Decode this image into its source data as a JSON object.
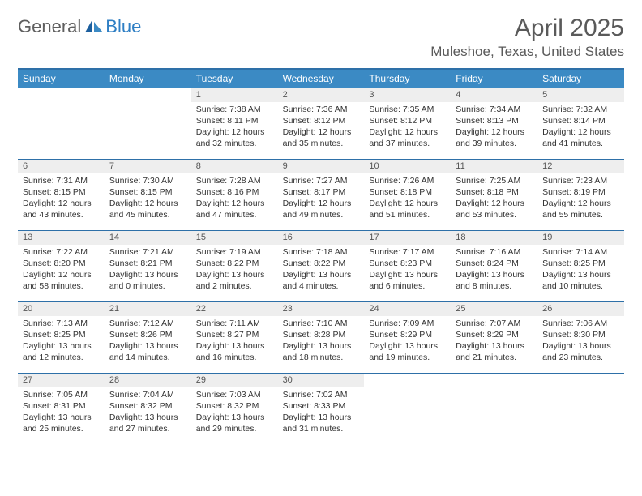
{
  "logo": {
    "text1": "General",
    "text2": "Blue"
  },
  "title": "April 2025",
  "location": "Muleshoe, Texas, United States",
  "colors": {
    "header_bg": "#3b8ac4",
    "header_text": "#ffffff",
    "border": "#2e70a8",
    "daynum_bg": "#eeeeee",
    "text": "#333333",
    "logo_gray": "#5f5f5f",
    "logo_blue": "#2f7fc4",
    "title_color": "#5a5a5a"
  },
  "weekdays": [
    "Sunday",
    "Monday",
    "Tuesday",
    "Wednesday",
    "Thursday",
    "Friday",
    "Saturday"
  ],
  "leading_blanks": 2,
  "days": [
    {
      "n": "1",
      "sunrise": "7:38 AM",
      "sunset": "8:11 PM",
      "day_h": 12,
      "day_m": 32
    },
    {
      "n": "2",
      "sunrise": "7:36 AM",
      "sunset": "8:12 PM",
      "day_h": 12,
      "day_m": 35
    },
    {
      "n": "3",
      "sunrise": "7:35 AM",
      "sunset": "8:12 PM",
      "day_h": 12,
      "day_m": 37
    },
    {
      "n": "4",
      "sunrise": "7:34 AM",
      "sunset": "8:13 PM",
      "day_h": 12,
      "day_m": 39
    },
    {
      "n": "5",
      "sunrise": "7:32 AM",
      "sunset": "8:14 PM",
      "day_h": 12,
      "day_m": 41
    },
    {
      "n": "6",
      "sunrise": "7:31 AM",
      "sunset": "8:15 PM",
      "day_h": 12,
      "day_m": 43
    },
    {
      "n": "7",
      "sunrise": "7:30 AM",
      "sunset": "8:15 PM",
      "day_h": 12,
      "day_m": 45
    },
    {
      "n": "8",
      "sunrise": "7:28 AM",
      "sunset": "8:16 PM",
      "day_h": 12,
      "day_m": 47
    },
    {
      "n": "9",
      "sunrise": "7:27 AM",
      "sunset": "8:17 PM",
      "day_h": 12,
      "day_m": 49
    },
    {
      "n": "10",
      "sunrise": "7:26 AM",
      "sunset": "8:18 PM",
      "day_h": 12,
      "day_m": 51
    },
    {
      "n": "11",
      "sunrise": "7:25 AM",
      "sunset": "8:18 PM",
      "day_h": 12,
      "day_m": 53
    },
    {
      "n": "12",
      "sunrise": "7:23 AM",
      "sunset": "8:19 PM",
      "day_h": 12,
      "day_m": 55
    },
    {
      "n": "13",
      "sunrise": "7:22 AM",
      "sunset": "8:20 PM",
      "day_h": 12,
      "day_m": 58
    },
    {
      "n": "14",
      "sunrise": "7:21 AM",
      "sunset": "8:21 PM",
      "day_h": 13,
      "day_m": 0
    },
    {
      "n": "15",
      "sunrise": "7:19 AM",
      "sunset": "8:22 PM",
      "day_h": 13,
      "day_m": 2
    },
    {
      "n": "16",
      "sunrise": "7:18 AM",
      "sunset": "8:22 PM",
      "day_h": 13,
      "day_m": 4
    },
    {
      "n": "17",
      "sunrise": "7:17 AM",
      "sunset": "8:23 PM",
      "day_h": 13,
      "day_m": 6
    },
    {
      "n": "18",
      "sunrise": "7:16 AM",
      "sunset": "8:24 PM",
      "day_h": 13,
      "day_m": 8
    },
    {
      "n": "19",
      "sunrise": "7:14 AM",
      "sunset": "8:25 PM",
      "day_h": 13,
      "day_m": 10
    },
    {
      "n": "20",
      "sunrise": "7:13 AM",
      "sunset": "8:25 PM",
      "day_h": 13,
      "day_m": 12
    },
    {
      "n": "21",
      "sunrise": "7:12 AM",
      "sunset": "8:26 PM",
      "day_h": 13,
      "day_m": 14
    },
    {
      "n": "22",
      "sunrise": "7:11 AM",
      "sunset": "8:27 PM",
      "day_h": 13,
      "day_m": 16
    },
    {
      "n": "23",
      "sunrise": "7:10 AM",
      "sunset": "8:28 PM",
      "day_h": 13,
      "day_m": 18
    },
    {
      "n": "24",
      "sunrise": "7:09 AM",
      "sunset": "8:29 PM",
      "day_h": 13,
      "day_m": 19
    },
    {
      "n": "25",
      "sunrise": "7:07 AM",
      "sunset": "8:29 PM",
      "day_h": 13,
      "day_m": 21
    },
    {
      "n": "26",
      "sunrise": "7:06 AM",
      "sunset": "8:30 PM",
      "day_h": 13,
      "day_m": 23
    },
    {
      "n": "27",
      "sunrise": "7:05 AM",
      "sunset": "8:31 PM",
      "day_h": 13,
      "day_m": 25
    },
    {
      "n": "28",
      "sunrise": "7:04 AM",
      "sunset": "8:32 PM",
      "day_h": 13,
      "day_m": 27
    },
    {
      "n": "29",
      "sunrise": "7:03 AM",
      "sunset": "8:32 PM",
      "day_h": 13,
      "day_m": 29
    },
    {
      "n": "30",
      "sunrise": "7:02 AM",
      "sunset": "8:33 PM",
      "day_h": 13,
      "day_m": 31
    }
  ],
  "labels": {
    "sunrise_prefix": "Sunrise: ",
    "sunset_prefix": "Sunset: ",
    "daylight_prefix": "Daylight: ",
    "hours_word": " hours",
    "and_word": "and ",
    "minutes_word": " minutes."
  }
}
